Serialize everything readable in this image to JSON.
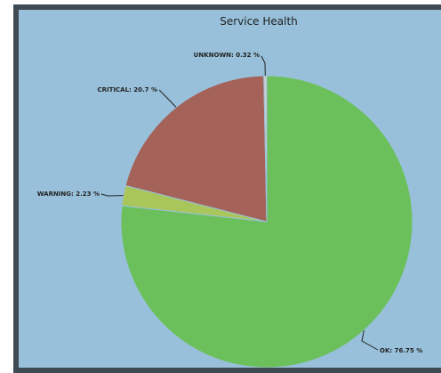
{
  "chart_data": {
    "type": "pie",
    "title": "Service Health",
    "slices": [
      {
        "label": "OK",
        "value": 76.75,
        "display": "OK: 76.75 %",
        "color": "#6cc05c"
      },
      {
        "label": "WARNING",
        "value": 2.23,
        "display": "WARNING: 2.23 %",
        "color": "#a9c65a"
      },
      {
        "label": "CRITICAL",
        "value": 20.7,
        "display": "CRITICAL: 20.7 %",
        "color": "#a46258"
      },
      {
        "label": "UNKNOWN",
        "value": 0.32,
        "display": "UNKNOWN: 0.32 %",
        "color": "#cfcfcf"
      }
    ]
  }
}
